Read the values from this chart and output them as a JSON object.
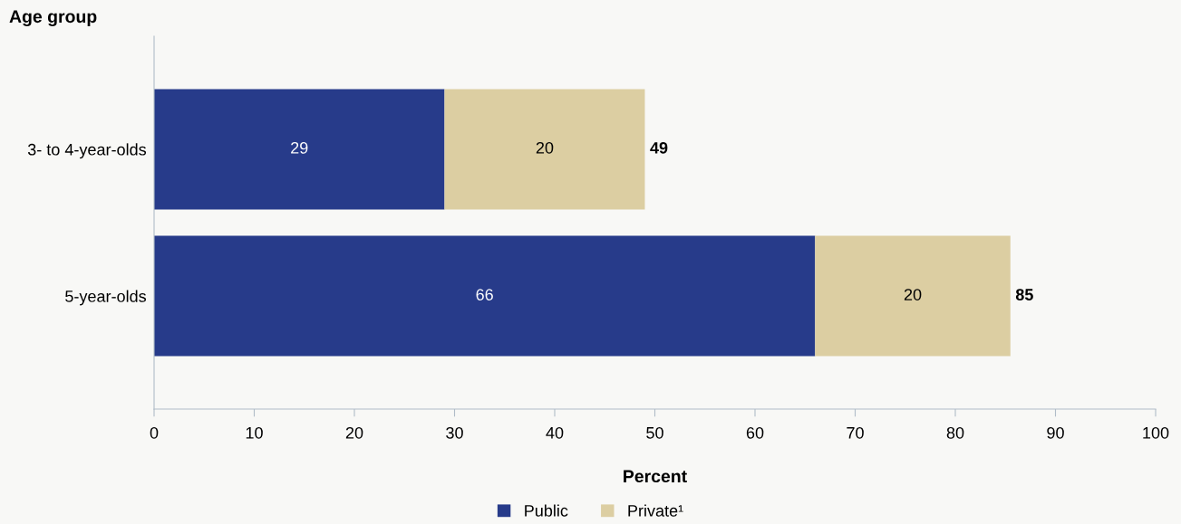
{
  "chart_data": {
    "type": "bar",
    "orientation": "horizontal",
    "stacked": true,
    "xlabel": "Percent",
    "ylabel": "Age group",
    "categories": [
      "3- to 4-year-olds",
      "5-year-olds"
    ],
    "series": [
      {
        "name": "Public",
        "color": "#273b8a",
        "values": [
          29,
          66
        ],
        "value_labels": [
          "29",
          "66"
        ]
      },
      {
        "name": "Private¹",
        "color": "#dccea2",
        "values": [
          20,
          19.5
        ],
        "value_labels": [
          "20",
          "20"
        ]
      }
    ],
    "totals": [
      "49",
      "85"
    ],
    "xlim": [
      0,
      100
    ],
    "xticks": [
      0,
      10,
      20,
      30,
      40,
      50,
      60,
      70,
      80,
      90,
      100
    ],
    "grid": false,
    "legend": "bottom"
  }
}
